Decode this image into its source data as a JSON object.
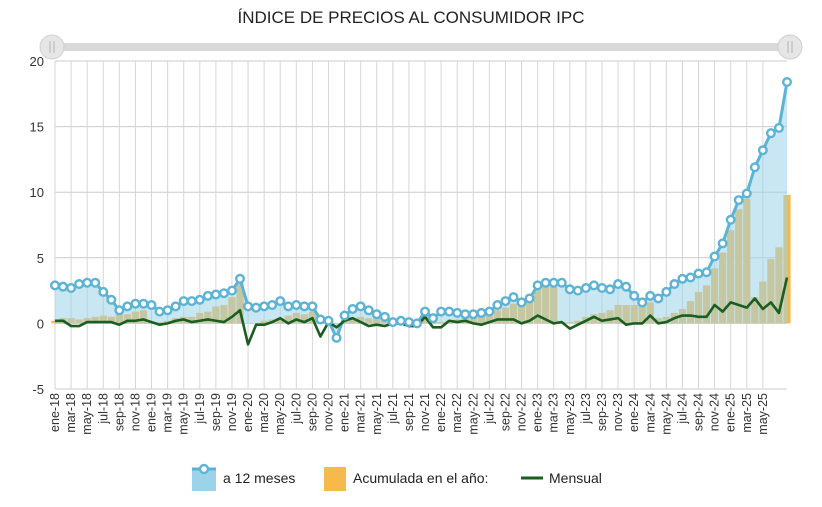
{
  "chart_data": {
    "type": "bar+area+line",
    "title": "ÍNDICE DE PRECIOS AL CONSUMIDOR IPC",
    "ylim": [
      -5,
      20
    ],
    "yticks": [
      -5,
      0,
      5,
      10,
      15,
      20
    ],
    "grid": true,
    "legend_position": "bottom",
    "x_tick_labels": [
      "ene-18",
      "mar-18",
      "may-18",
      "jul-18",
      "sep-18",
      "nov-18",
      "ene-19",
      "mar-19",
      "may-19",
      "jul-19",
      "sep-19",
      "nov-19",
      "ene-20",
      "mar-20",
      "may-20",
      "jul-20",
      "sep-20",
      "nov-20",
      "ene-21",
      "mar-21",
      "may-21",
      "jul-21",
      "sep-21",
      "nov-21",
      "ene-22",
      "mar-22",
      "may-22",
      "jul-22",
      "sep-22",
      "nov-22",
      "ene-23",
      "mar-23",
      "may-23",
      "jul-23",
      "sep-23",
      "nov-23",
      "ene-24",
      "mar-24",
      "may-24",
      "jul-24",
      "sep-24",
      "nov-24",
      "ene-25",
      "mar-25",
      "may-25"
    ],
    "series": [
      {
        "name": "a 12 meses",
        "kind": "area",
        "color": "#9dd3ea",
        "marker_color": "#5bb3d6",
        "values": [
          2.9,
          2.8,
          2.7,
          3.0,
          3.1,
          3.1,
          2.4,
          1.8,
          1.0,
          1.3,
          1.5,
          1.5,
          1.4,
          0.9,
          1.0,
          1.3,
          1.7,
          1.7,
          1.8,
          2.1,
          2.2,
          2.3,
          2.5,
          3.4,
          1.3,
          1.2,
          1.3,
          1.4,
          1.7,
          1.3,
          1.4,
          1.3,
          1.3,
          0.3,
          0.2,
          -1.1,
          0.6,
          1.1,
          1.3,
          1.0,
          0.7,
          0.5,
          0.1,
          0.2,
          0.1,
          0.0,
          0.9,
          0.4,
          0.9,
          0.9,
          0.8,
          0.7,
          0.7,
          0.8,
          0.9,
          1.4,
          1.7,
          2.0,
          1.6,
          1.9,
          2.9,
          3.1,
          3.1,
          3.1,
          2.6,
          2.5,
          2.7,
          2.9,
          2.7,
          2.6,
          3.0,
          2.8,
          2.1,
          1.6,
          2.1,
          1.9,
          2.4,
          3.0,
          3.4,
          3.5,
          3.8,
          3.9,
          5.1,
          6.1,
          7.9,
          9.4,
          9.9,
          11.9,
          13.2,
          14.5,
          14.9,
          18.4
        ]
      },
      {
        "name": "Acumulada en el año:",
        "kind": "bar",
        "color": "#f6b94c",
        "values": [
          0.2,
          0.4,
          0.4,
          0.3,
          0.4,
          0.5,
          0.6,
          0.5,
          0.7,
          0.7,
          0.9,
          1.0,
          0.1,
          0.1,
          0.2,
          0.4,
          0.5,
          0.5,
          0.8,
          0.9,
          1.3,
          1.4,
          2.0,
          3.0,
          0.0,
          0.0,
          0.2,
          0.3,
          0.4,
          0.6,
          0.8,
          0.7,
          0.9,
          0.1,
          0.1,
          0.0,
          0.2,
          0.3,
          0.5,
          0.4,
          0.4,
          0.3,
          0.0,
          0.1,
          0.2,
          0.2,
          0.9,
          0.5,
          0.1,
          0.2,
          0.3,
          0.4,
          0.5,
          0.6,
          0.9,
          1.0,
          1.2,
          1.5,
          1.6,
          1.9,
          2.8,
          3.1,
          2.8,
          0.1,
          0.1,
          0.2,
          0.5,
          0.7,
          0.8,
          1.0,
          1.4,
          1.4,
          1.4,
          1.4,
          1.6,
          0.4,
          0.5,
          0.8,
          1.1,
          1.7,
          2.4,
          2.9,
          4.2,
          5.4,
          7.1,
          8.7,
          9.5,
          2.0,
          3.2,
          4.9,
          5.8,
          9.8
        ]
      },
      {
        "name": "Mensual",
        "kind": "line",
        "color": "#1a5e20",
        "values": [
          0.2,
          0.2,
          -0.2,
          -0.2,
          0.1,
          0.1,
          0.1,
          0.1,
          -0.1,
          0.2,
          0.2,
          0.3,
          0.1,
          -0.1,
          0.0,
          0.2,
          0.3,
          0.1,
          0.2,
          0.3,
          0.2,
          0.1,
          0.5,
          1.0,
          -1.6,
          -0.1,
          -0.1,
          0.1,
          0.4,
          0.0,
          0.3,
          0.1,
          0.4,
          -1.0,
          0.1,
          -0.3,
          0.2,
          0.4,
          0.1,
          -0.2,
          -0.1,
          -0.2,
          0.0,
          0.0,
          -0.2,
          -0.2,
          0.5,
          -0.3,
          -0.3,
          0.2,
          0.1,
          0.2,
          0.0,
          -0.1,
          0.1,
          0.3,
          0.3,
          0.3,
          0.0,
          0.2,
          0.6,
          0.3,
          0.0,
          0.1,
          -0.4,
          -0.1,
          0.2,
          0.5,
          0.2,
          0.3,
          0.4,
          -0.1,
          0.0,
          0.0,
          0.6,
          0.0,
          0.1,
          0.4,
          0.6,
          0.6,
          0.5,
          0.5,
          1.4,
          0.9,
          1.6,
          1.4,
          1.2,
          1.9,
          1.1,
          1.6,
          0.8,
          3.5
        ]
      }
    ]
  }
}
